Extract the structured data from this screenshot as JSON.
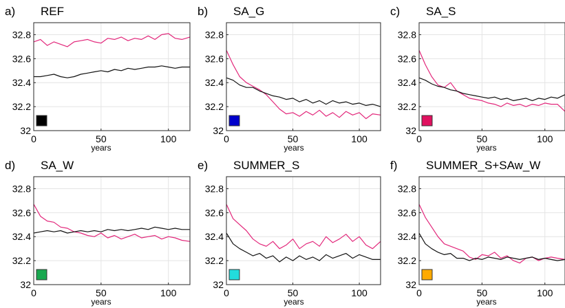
{
  "chart_data": [
    {
      "type": "line",
      "panel_label": "a)",
      "title": "REF",
      "xlabel": "years",
      "ylabel": "",
      "xlim": [
        0,
        116
      ],
      "ylim": [
        32.0,
        32.9
      ],
      "xticks": [
        0,
        50,
        100
      ],
      "yticks": [
        32.0,
        32.2,
        32.4,
        32.6,
        32.8
      ],
      "ytick_labels": [
        "32",
        "32.2",
        "32.4",
        "32.6",
        "32.8"
      ],
      "grid": true,
      "swatch_color": "#000000",
      "series": [
        {
          "color": "#e2267a",
          "x": [
            0,
            5,
            10,
            15,
            20,
            25,
            30,
            35,
            40,
            45,
            50,
            55,
            60,
            65,
            70,
            75,
            80,
            85,
            90,
            95,
            100,
            105,
            110,
            116
          ],
          "y": [
            32.74,
            32.76,
            32.71,
            32.74,
            32.72,
            32.7,
            32.74,
            32.75,
            32.76,
            32.74,
            32.73,
            32.77,
            32.76,
            32.78,
            32.75,
            32.77,
            32.76,
            32.79,
            32.76,
            32.8,
            32.81,
            32.77,
            32.76,
            32.78
          ]
        },
        {
          "color": "#111111",
          "x": [
            0,
            5,
            10,
            15,
            20,
            25,
            30,
            35,
            40,
            45,
            50,
            55,
            60,
            65,
            70,
            75,
            80,
            85,
            90,
            95,
            100,
            105,
            110,
            116
          ],
          "y": [
            32.45,
            32.45,
            32.46,
            32.47,
            32.45,
            32.44,
            32.45,
            32.47,
            32.48,
            32.49,
            32.5,
            32.49,
            32.51,
            32.5,
            32.52,
            32.51,
            32.52,
            32.53,
            32.53,
            32.54,
            32.53,
            32.52,
            32.53,
            32.53
          ]
        }
      ]
    },
    {
      "type": "line",
      "panel_label": "b)",
      "title": "SA_G",
      "xlabel": "years",
      "ylabel": "",
      "xlim": [
        0,
        116
      ],
      "ylim": [
        32.0,
        32.9
      ],
      "xticks": [
        0,
        50,
        100
      ],
      "yticks": [
        32.0,
        32.2,
        32.4,
        32.6,
        32.8
      ],
      "ytick_labels": [
        "32",
        "32.2",
        "32.4",
        "32.6",
        "32.8"
      ],
      "grid": true,
      "swatch_color": "#0000cc",
      "series": [
        {
          "color": "#e2267a",
          "x": [
            0,
            5,
            10,
            15,
            20,
            25,
            30,
            35,
            40,
            45,
            50,
            55,
            60,
            65,
            70,
            75,
            80,
            85,
            90,
            95,
            100,
            105,
            110,
            116
          ],
          "y": [
            32.67,
            32.55,
            32.45,
            32.4,
            32.37,
            32.34,
            32.3,
            32.24,
            32.18,
            32.14,
            32.15,
            32.12,
            32.16,
            32.13,
            32.17,
            32.12,
            32.15,
            32.11,
            32.16,
            32.13,
            32.15,
            32.1,
            32.14,
            32.13
          ]
        },
        {
          "color": "#111111",
          "x": [
            0,
            5,
            10,
            15,
            20,
            25,
            30,
            35,
            40,
            45,
            50,
            55,
            60,
            65,
            70,
            75,
            80,
            85,
            90,
            95,
            100,
            105,
            110,
            116
          ],
          "y": [
            32.44,
            32.42,
            32.38,
            32.36,
            32.36,
            32.33,
            32.31,
            32.29,
            32.28,
            32.26,
            32.27,
            32.24,
            32.26,
            32.23,
            32.25,
            32.22,
            32.25,
            32.23,
            32.24,
            32.22,
            32.23,
            32.21,
            32.22,
            32.2
          ]
        }
      ]
    },
    {
      "type": "line",
      "panel_label": "c)",
      "title": "SA_S",
      "xlabel": "years",
      "ylabel": "",
      "xlim": [
        0,
        116
      ],
      "ylim": [
        32.0,
        32.9
      ],
      "xticks": [
        0,
        50,
        100
      ],
      "yticks": [
        32.0,
        32.2,
        32.4,
        32.6,
        32.8
      ],
      "ytick_labels": [
        "32",
        "32.2",
        "32.4",
        "32.6",
        "32.8"
      ],
      "grid": true,
      "swatch_color": "#e0115f",
      "series": [
        {
          "color": "#e2267a",
          "x": [
            0,
            5,
            10,
            15,
            20,
            25,
            30,
            35,
            40,
            45,
            50,
            55,
            60,
            65,
            70,
            75,
            80,
            85,
            90,
            95,
            100,
            105,
            110,
            116
          ],
          "y": [
            32.67,
            32.55,
            32.45,
            32.38,
            32.36,
            32.4,
            32.33,
            32.3,
            32.27,
            32.26,
            32.25,
            32.23,
            32.22,
            32.2,
            32.23,
            32.21,
            32.22,
            32.2,
            32.22,
            32.21,
            32.23,
            32.22,
            32.22,
            32.16
          ]
        },
        {
          "color": "#111111",
          "x": [
            0,
            5,
            10,
            15,
            20,
            25,
            30,
            35,
            40,
            45,
            50,
            55,
            60,
            65,
            70,
            75,
            80,
            85,
            90,
            95,
            100,
            105,
            110,
            116
          ],
          "y": [
            32.44,
            32.42,
            32.39,
            32.37,
            32.36,
            32.34,
            32.33,
            32.31,
            32.3,
            32.29,
            32.28,
            32.27,
            32.28,
            32.26,
            32.27,
            32.25,
            32.26,
            32.27,
            32.25,
            32.27,
            32.26,
            32.28,
            32.27,
            32.3
          ]
        }
      ]
    },
    {
      "type": "line",
      "panel_label": "d)",
      "title": "SA_W",
      "xlabel": "years",
      "ylabel": "",
      "xlim": [
        0,
        116
      ],
      "ylim": [
        32.0,
        32.9
      ],
      "xticks": [
        0,
        50,
        100
      ],
      "yticks": [
        32.0,
        32.2,
        32.4,
        32.6,
        32.8
      ],
      "ytick_labels": [
        "32",
        "32.2",
        "32.4",
        "32.6",
        "32.8"
      ],
      "grid": true,
      "swatch_color": "#19a84f",
      "series": [
        {
          "color": "#e2267a",
          "x": [
            0,
            5,
            10,
            15,
            20,
            25,
            30,
            35,
            40,
            45,
            50,
            55,
            60,
            65,
            70,
            75,
            80,
            85,
            90,
            95,
            100,
            105,
            110,
            116
          ],
          "y": [
            32.67,
            32.57,
            32.53,
            32.52,
            32.48,
            32.47,
            32.44,
            32.43,
            32.41,
            32.4,
            32.43,
            32.39,
            32.41,
            32.38,
            32.4,
            32.42,
            32.39,
            32.4,
            32.41,
            32.38,
            32.4,
            32.39,
            32.37,
            32.36
          ]
        },
        {
          "color": "#111111",
          "x": [
            0,
            5,
            10,
            15,
            20,
            25,
            30,
            35,
            40,
            45,
            50,
            55,
            60,
            65,
            70,
            75,
            80,
            85,
            90,
            95,
            100,
            105,
            110,
            116
          ],
          "y": [
            32.43,
            32.44,
            32.45,
            32.44,
            32.45,
            32.43,
            32.44,
            32.45,
            32.44,
            32.45,
            32.44,
            32.46,
            32.45,
            32.46,
            32.45,
            32.46,
            32.47,
            32.46,
            32.48,
            32.47,
            32.46,
            32.47,
            32.46,
            32.46
          ]
        }
      ]
    },
    {
      "type": "line",
      "panel_label": "e)",
      "title": "SUMMER_S",
      "xlabel": "years",
      "ylabel": "",
      "xlim": [
        0,
        116
      ],
      "ylim": [
        32.0,
        32.9
      ],
      "xticks": [
        0,
        50,
        100
      ],
      "yticks": [
        32.0,
        32.2,
        32.4,
        32.6,
        32.8
      ],
      "ytick_labels": [
        "32",
        "32.2",
        "32.4",
        "32.6",
        "32.8"
      ],
      "grid": true,
      "swatch_color": "#22dddd",
      "series": [
        {
          "color": "#e2267a",
          "x": [
            0,
            5,
            10,
            15,
            20,
            25,
            30,
            35,
            40,
            45,
            50,
            55,
            60,
            65,
            70,
            75,
            80,
            85,
            90,
            95,
            100,
            105,
            110,
            116
          ],
          "y": [
            32.67,
            32.55,
            32.5,
            32.45,
            32.38,
            32.34,
            32.32,
            32.36,
            32.3,
            32.33,
            32.38,
            32.3,
            32.34,
            32.36,
            32.32,
            32.4,
            32.35,
            32.38,
            32.42,
            32.36,
            32.4,
            32.33,
            32.3,
            32.36
          ]
        },
        {
          "color": "#111111",
          "x": [
            0,
            5,
            10,
            15,
            20,
            25,
            30,
            35,
            40,
            45,
            50,
            55,
            60,
            65,
            70,
            75,
            80,
            85,
            90,
            95,
            100,
            105,
            110,
            116
          ],
          "y": [
            32.43,
            32.34,
            32.3,
            32.27,
            32.24,
            32.26,
            32.22,
            32.24,
            32.19,
            32.23,
            32.2,
            32.24,
            32.21,
            32.23,
            32.2,
            32.25,
            32.22,
            32.24,
            32.26,
            32.22,
            32.25,
            32.23,
            32.21,
            32.21
          ]
        }
      ]
    },
    {
      "type": "line",
      "panel_label": "f)",
      "title": "SUMMER_S+SAw_W",
      "xlabel": "years",
      "ylabel": "",
      "xlim": [
        0,
        116
      ],
      "ylim": [
        32.0,
        32.9
      ],
      "xticks": [
        0,
        50,
        100
      ],
      "yticks": [
        32.0,
        32.2,
        32.4,
        32.6,
        32.8
      ],
      "ytick_labels": [
        "32",
        "32.2",
        "32.4",
        "32.6",
        "32.8"
      ],
      "grid": true,
      "swatch_color": "#ffaa00",
      "series": [
        {
          "color": "#e2267a",
          "x": [
            0,
            5,
            10,
            15,
            20,
            25,
            30,
            35,
            40,
            45,
            50,
            55,
            60,
            65,
            70,
            75,
            80,
            85,
            90,
            95,
            100,
            105,
            110,
            116
          ],
          "y": [
            32.67,
            32.56,
            32.48,
            32.4,
            32.34,
            32.32,
            32.3,
            32.28,
            32.23,
            32.21,
            32.25,
            32.24,
            32.27,
            32.22,
            32.24,
            32.2,
            32.18,
            32.22,
            32.23,
            32.2,
            32.22,
            32.23,
            32.22,
            32.21
          ]
        },
        {
          "color": "#111111",
          "x": [
            0,
            5,
            10,
            15,
            20,
            25,
            30,
            35,
            40,
            45,
            50,
            55,
            60,
            65,
            70,
            75,
            80,
            85,
            90,
            95,
            100,
            105,
            110,
            116
          ],
          "y": [
            32.43,
            32.34,
            32.3,
            32.27,
            32.25,
            32.26,
            32.22,
            32.22,
            32.2,
            32.22,
            32.21,
            32.23,
            32.22,
            32.21,
            32.23,
            32.22,
            32.21,
            32.22,
            32.23,
            32.21,
            32.22,
            32.21,
            32.2,
            32.21
          ]
        }
      ]
    }
  ]
}
